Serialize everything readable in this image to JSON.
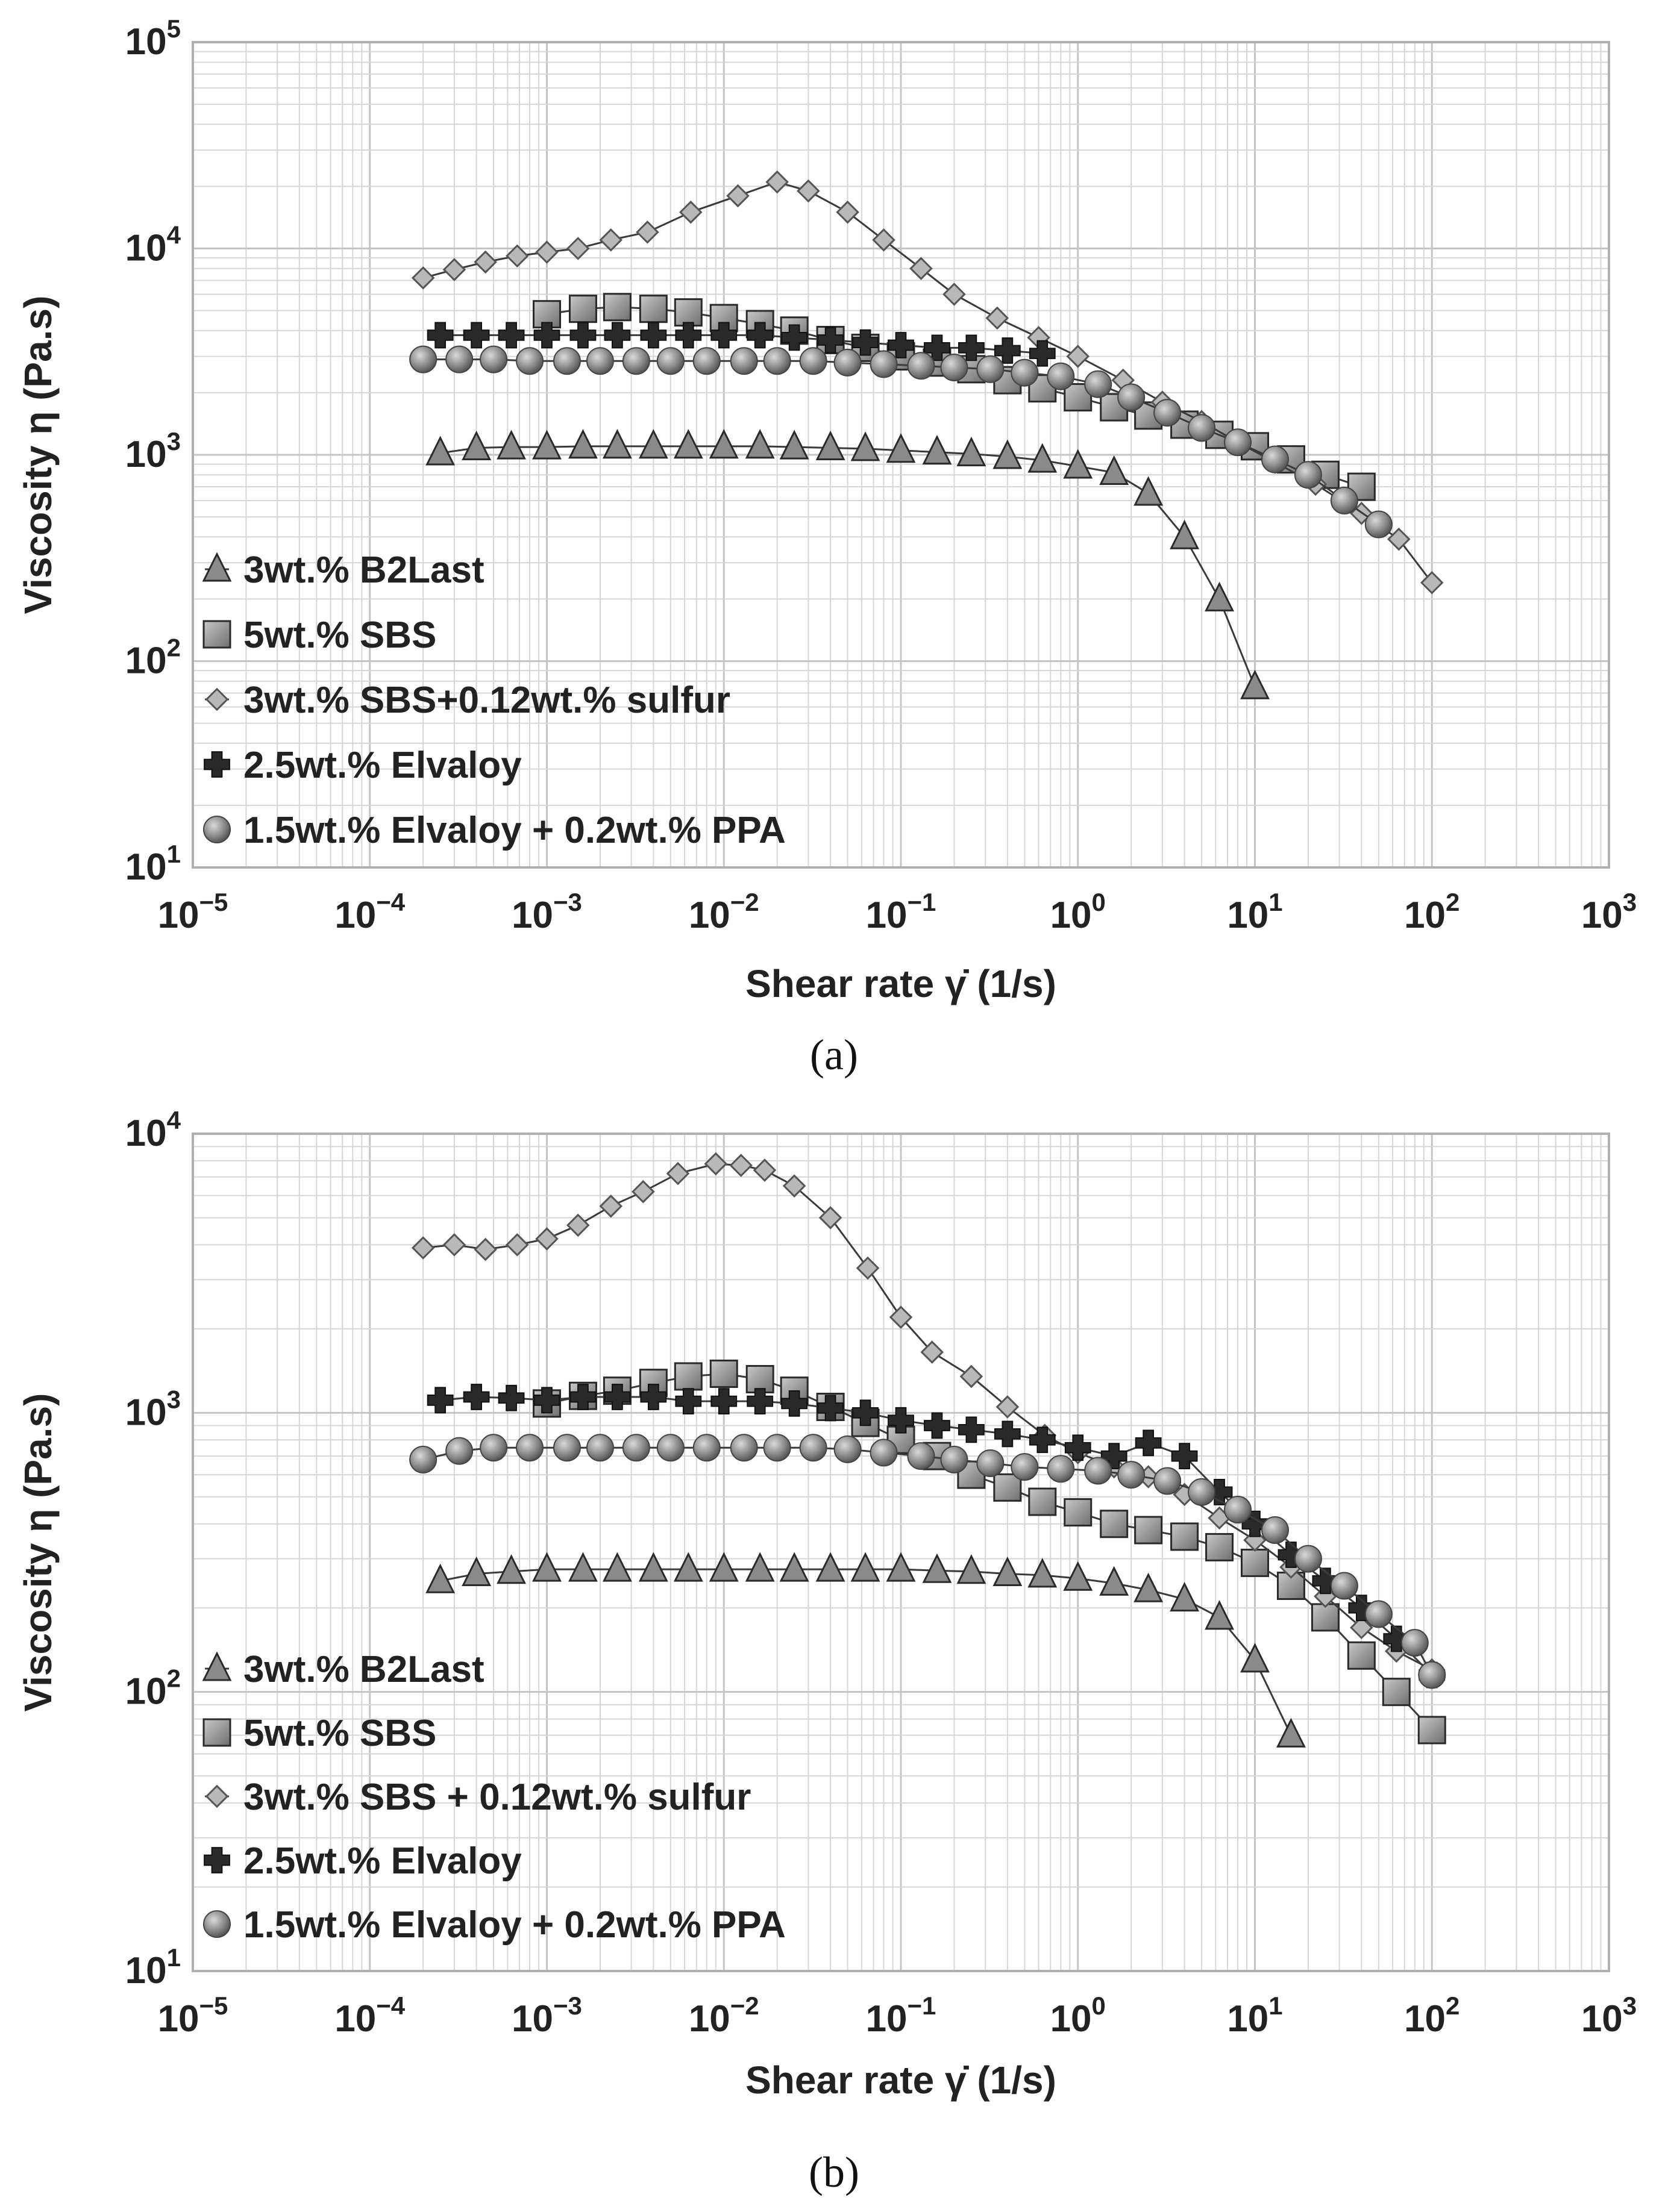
{
  "captions": [
    "(a)",
    "(b)"
  ],
  "colors": {
    "frame": "#b0b0b0",
    "grid": "#d6d6d6",
    "line": "#3a3a3a",
    "marker_dark": "#2a2a2a",
    "triangle_fill": "#8a8a8a",
    "square_fill": "#9a9a9a",
    "diamond_fill": "#b8b8b8",
    "circle_fill": "#8e8e8e",
    "text": "#222222"
  },
  "chart_data": [
    {
      "type": "scatter",
      "panel": "a",
      "title": "",
      "xlabel": "Shear rate γ̇ (1/s)",
      "ylabel": "Viscosity η (Pa.s)",
      "xscale": "log",
      "yscale": "log",
      "xlim_exp": [
        -5,
        3
      ],
      "ylim_exp": [
        1,
        5
      ],
      "x_tick_exponents": [
        -5,
        -4,
        -3,
        -2,
        -1,
        0,
        1,
        2,
        3
      ],
      "y_tick_exponents": [
        1,
        2,
        3,
        4,
        5
      ],
      "grid": true,
      "legend_position": "bottom-left",
      "series": [
        {
          "name": "3wt.% B2Last",
          "marker": "triangle",
          "x": [
            0.00025,
            0.0004,
            0.00063,
            0.001,
            0.0016,
            0.0025,
            0.004,
            0.0063,
            0.01,
            0.016,
            0.025,
            0.04,
            0.063,
            0.1,
            0.16,
            0.25,
            0.4,
            0.63,
            1,
            1.6,
            2.5,
            4,
            6.3,
            10
          ],
          "y": [
            1020,
            1080,
            1090,
            1090,
            1100,
            1100,
            1100,
            1100,
            1100,
            1100,
            1090,
            1080,
            1070,
            1050,
            1030,
            1010,
            980,
            940,
            880,
            820,
            650,
            400,
            200,
            75
          ]
        },
        {
          "name": "5wt.% SBS",
          "marker": "square",
          "x": [
            0.001,
            0.0016,
            0.0025,
            0.004,
            0.0063,
            0.01,
            0.016,
            0.025,
            0.04,
            0.063,
            0.1,
            0.16,
            0.25,
            0.4,
            0.63,
            1,
            1.6,
            2.5,
            4,
            6.3,
            10,
            16,
            25,
            40
          ],
          "y": [
            4800,
            5100,
            5200,
            5100,
            4900,
            4600,
            4300,
            4000,
            3600,
            3300,
            3000,
            2800,
            2600,
            2300,
            2100,
            1900,
            1700,
            1550,
            1400,
            1250,
            1100,
            950,
            800,
            700
          ]
        },
        {
          "name": "3wt.% SBS+0.12wt.% sulfur",
          "marker": "diamond",
          "x": [
            0.0002,
            0.0003,
            0.00045,
            0.00068,
            0.001,
            0.0015,
            0.0023,
            0.0037,
            0.0065,
            0.012,
            0.02,
            0.03,
            0.05,
            0.08,
            0.13,
            0.2,
            0.35,
            0.6,
            1,
            1.8,
            3,
            5,
            8,
            13,
            22,
            40,
            65,
            100
          ],
          "y": [
            7200,
            7900,
            8600,
            9200,
            9600,
            10000,
            11000,
            12000,
            15000,
            18000,
            21000,
            19000,
            15000,
            11000,
            8000,
            6000,
            4600,
            3700,
            3000,
            2300,
            1800,
            1450,
            1150,
            920,
            720,
            520,
            390,
            240
          ]
        },
        {
          "name": "2.5wt.% Elvaloy",
          "marker": "cross",
          "x": [
            0.00025,
            0.0004,
            0.00063,
            0.001,
            0.0016,
            0.0025,
            0.004,
            0.0063,
            0.01,
            0.016,
            0.025,
            0.04,
            0.063,
            0.1,
            0.16,
            0.25,
            0.4,
            0.63
          ],
          "y": [
            3800,
            3800,
            3800,
            3800,
            3800,
            3800,
            3800,
            3800,
            3800,
            3800,
            3700,
            3600,
            3500,
            3400,
            3300,
            3300,
            3200,
            3100
          ]
        },
        {
          "name": "1.5wt.% Elvaloy + 0.2wt.% PPA",
          "marker": "circle",
          "x": [
            0.0002,
            0.00032,
            0.0005,
            0.0008,
            0.0013,
            0.002,
            0.0032,
            0.005,
            0.008,
            0.013,
            0.02,
            0.032,
            0.05,
            0.08,
            0.13,
            0.2,
            0.32,
            0.5,
            0.8,
            1.3,
            2,
            3.2,
            5,
            8,
            13,
            20,
            32,
            50
          ],
          "y": [
            2900,
            2900,
            2900,
            2850,
            2850,
            2850,
            2850,
            2850,
            2850,
            2850,
            2850,
            2850,
            2800,
            2750,
            2700,
            2650,
            2600,
            2500,
            2400,
            2200,
            1900,
            1600,
            1350,
            1150,
            950,
            800,
            600,
            460
          ]
        }
      ]
    },
    {
      "type": "scatter",
      "panel": "b",
      "title": "",
      "xlabel": "Shear rate γ̇ (1/s)",
      "ylabel": "Viscosity η (Pa.s)",
      "xscale": "log",
      "yscale": "log",
      "xlim_exp": [
        -5,
        3
      ],
      "ylim_exp": [
        1,
        4
      ],
      "x_tick_exponents": [
        -5,
        -4,
        -3,
        -2,
        -1,
        0,
        1,
        2,
        3
      ],
      "y_tick_exponents": [
        1,
        2,
        3,
        4
      ],
      "grid": true,
      "legend_position": "bottom-left",
      "series": [
        {
          "name": "3wt.% B2Last",
          "marker": "triangle",
          "x": [
            0.00025,
            0.0004,
            0.00063,
            0.001,
            0.0016,
            0.0025,
            0.004,
            0.0063,
            0.01,
            0.016,
            0.025,
            0.04,
            0.063,
            0.1,
            0.16,
            0.25,
            0.4,
            0.63,
            1,
            1.6,
            2.5,
            4,
            6.3,
            10,
            16
          ],
          "y": [
            250,
            265,
            270,
            275,
            275,
            275,
            275,
            275,
            275,
            275,
            275,
            275,
            275,
            275,
            272,
            270,
            265,
            262,
            255,
            245,
            232,
            215,
            185,
            130,
            70
          ]
        },
        {
          "name": "5wt.% SBS",
          "marker": "square",
          "x": [
            0.001,
            0.0016,
            0.0025,
            0.004,
            0.0063,
            0.01,
            0.016,
            0.025,
            0.04,
            0.063,
            0.1,
            0.16,
            0.25,
            0.4,
            0.63,
            1,
            1.6,
            2.5,
            4,
            6.3,
            10,
            16,
            25,
            40,
            63,
            100
          ],
          "y": [
            1080,
            1150,
            1200,
            1280,
            1350,
            1380,
            1320,
            1200,
            1050,
            920,
            800,
            700,
            600,
            540,
            480,
            440,
            400,
            380,
            360,
            330,
            290,
            240,
            185,
            135,
            100,
            73
          ]
        },
        {
          "name": "3wt.% SBS + 0.12wt.% sulfur",
          "marker": "diamond",
          "x": [
            0.0002,
            0.0003,
            0.00045,
            0.00068,
            0.001,
            0.0015,
            0.0023,
            0.0035,
            0.0055,
            0.009,
            0.0125,
            0.017,
            0.025,
            0.04,
            0.065,
            0.1,
            0.15,
            0.25,
            0.4,
            0.65,
            1,
            1.6,
            2.5,
            4,
            6.3,
            10,
            16,
            25,
            40,
            63,
            100
          ],
          "y": [
            3900,
            4000,
            3850,
            4000,
            4200,
            4700,
            5500,
            6200,
            7200,
            7800,
            7700,
            7400,
            6500,
            5000,
            3300,
            2200,
            1650,
            1350,
            1050,
            830,
            720,
            640,
            590,
            510,
            420,
            350,
            280,
            220,
            170,
            140,
            120
          ]
        },
        {
          "name": "2.5wt.% Elvaloy",
          "marker": "cross",
          "x": [
            0.00025,
            0.0004,
            0.00063,
            0.001,
            0.0016,
            0.0025,
            0.004,
            0.0063,
            0.01,
            0.016,
            0.025,
            0.04,
            0.063,
            0.1,
            0.16,
            0.25,
            0.4,
            0.63,
            1,
            1.6,
            2.5,
            4,
            6.3,
            10,
            16,
            25,
            40,
            63,
            100
          ],
          "y": [
            1110,
            1140,
            1130,
            1110,
            1140,
            1140,
            1140,
            1100,
            1100,
            1100,
            1080,
            1040,
            1000,
            940,
            900,
            870,
            840,
            800,
            750,
            700,
            780,
            700,
            520,
            400,
            310,
            250,
            200,
            155,
            115
          ]
        },
        {
          "name": "1.5wt.% Elvaloy + 0.2wt.% PPA",
          "marker": "circle",
          "x": [
            0.0002,
            0.00032,
            0.0005,
            0.0008,
            0.0013,
            0.002,
            0.0032,
            0.005,
            0.008,
            0.013,
            0.02,
            0.032,
            0.05,
            0.08,
            0.13,
            0.2,
            0.32,
            0.5,
            0.8,
            1.3,
            2,
            3.2,
            5,
            8,
            13,
            20,
            32,
            50,
            80,
            100
          ],
          "y": [
            680,
            730,
            750,
            750,
            750,
            750,
            750,
            750,
            750,
            750,
            750,
            750,
            740,
            720,
            700,
            680,
            660,
            640,
            630,
            620,
            600,
            570,
            520,
            450,
            380,
            300,
            240,
            190,
            150,
            115
          ]
        }
      ]
    }
  ]
}
